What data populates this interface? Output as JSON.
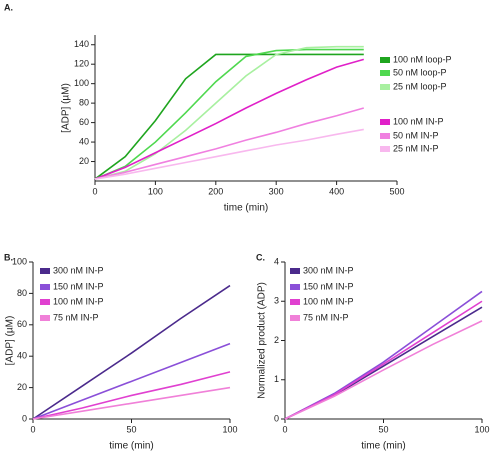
{
  "chart_data": [
    {
      "type": "line",
      "panel": "A.",
      "xlabel": "time (min)",
      "ylabel": "[ADP] (µM)",
      "xlim": [
        0,
        500
      ],
      "xticks": [
        0,
        100,
        200,
        300,
        400,
        500
      ],
      "ylim": [
        0,
        150
      ],
      "yticks": [
        20,
        40,
        60,
        80,
        100,
        120,
        140
      ],
      "x": [
        0,
        50,
        100,
        150,
        200,
        250,
        300,
        350,
        400,
        445
      ],
      "series": [
        {
          "name": "100 nM loop-P",
          "color": "#1fa51f",
          "values": [
            2,
            25,
            62,
            105,
            130,
            130,
            130,
            130,
            130,
            130
          ]
        },
        {
          "name": "50 nM loop-P",
          "color": "#4fd84f",
          "values": [
            2,
            15,
            40,
            70,
            102,
            128,
            134,
            135,
            135,
            135
          ]
        },
        {
          "name": "25 nM loop-P",
          "color": "#a8f0a0",
          "values": [
            2,
            10,
            28,
            52,
            80,
            108,
            130,
            137,
            138,
            138
          ]
        },
        {
          "name": "100 nM IN-P",
          "color": "#e020c8",
          "values": [
            2,
            14,
            29,
            44,
            59,
            75,
            90,
            104,
            117,
            125
          ]
        },
        {
          "name": "50 nM IN-P",
          "color": "#f080e0",
          "values": [
            2,
            9,
            17,
            25,
            33,
            42,
            50,
            59,
            67,
            75
          ]
        },
        {
          "name": "25 nM IN-P",
          "color": "#f8b8ee",
          "values": [
            2,
            7,
            13,
            19,
            25,
            31,
            37,
            42,
            48,
            53
          ]
        }
      ]
    },
    {
      "type": "line",
      "panel": "B.",
      "xlabel": "time (min)",
      "ylabel": "[ADP] (µM)",
      "xlim": [
        0,
        100
      ],
      "xticks": [
        0,
        50,
        100
      ],
      "ylim": [
        0,
        100
      ],
      "yticks": [
        0,
        20,
        40,
        60,
        80,
        100
      ],
      "x": [
        0,
        25,
        50,
        75,
        100
      ],
      "series": [
        {
          "name": "300 nM IN-P",
          "color": "#4b2a8c",
          "values": [
            0,
            21,
            42,
            64,
            85
          ]
        },
        {
          "name": "150 nM IN-P",
          "color": "#8a4fd8",
          "values": [
            0,
            12,
            24,
            36,
            48
          ]
        },
        {
          "name": "100 nM IN-P",
          "color": "#e040d0",
          "values": [
            0,
            7,
            15,
            22,
            30
          ]
        },
        {
          "name": "75 nM IN-P",
          "color": "#f080d8",
          "values": [
            0,
            5,
            10,
            15,
            20
          ]
        }
      ]
    },
    {
      "type": "line",
      "panel": "C.",
      "xlabel": "time (min)",
      "ylabel": "Normalized product (ADP)",
      "xlim": [
        0,
        100
      ],
      "xticks": [
        0,
        50,
        100
      ],
      "ylim": [
        0,
        4
      ],
      "yticks": [
        0,
        1,
        2,
        3,
        4
      ],
      "x": [
        0,
        25,
        50,
        75,
        100
      ],
      "series": [
        {
          "name": "300 nM IN-P",
          "color": "#4b2a8c",
          "values": [
            0,
            0.6,
            1.35,
            2.1,
            2.85
          ]
        },
        {
          "name": "150 nM IN-P",
          "color": "#8a4fd8",
          "values": [
            0,
            0.65,
            1.45,
            2.35,
            3.25
          ]
        },
        {
          "name": "100 nM IN-P",
          "color": "#e040d0",
          "values": [
            0,
            0.62,
            1.4,
            2.2,
            3.0
          ]
        },
        {
          "name": "75 nM IN-P",
          "color": "#f080d8",
          "values": [
            0,
            0.58,
            1.25,
            1.9,
            2.5
          ]
        }
      ]
    }
  ]
}
